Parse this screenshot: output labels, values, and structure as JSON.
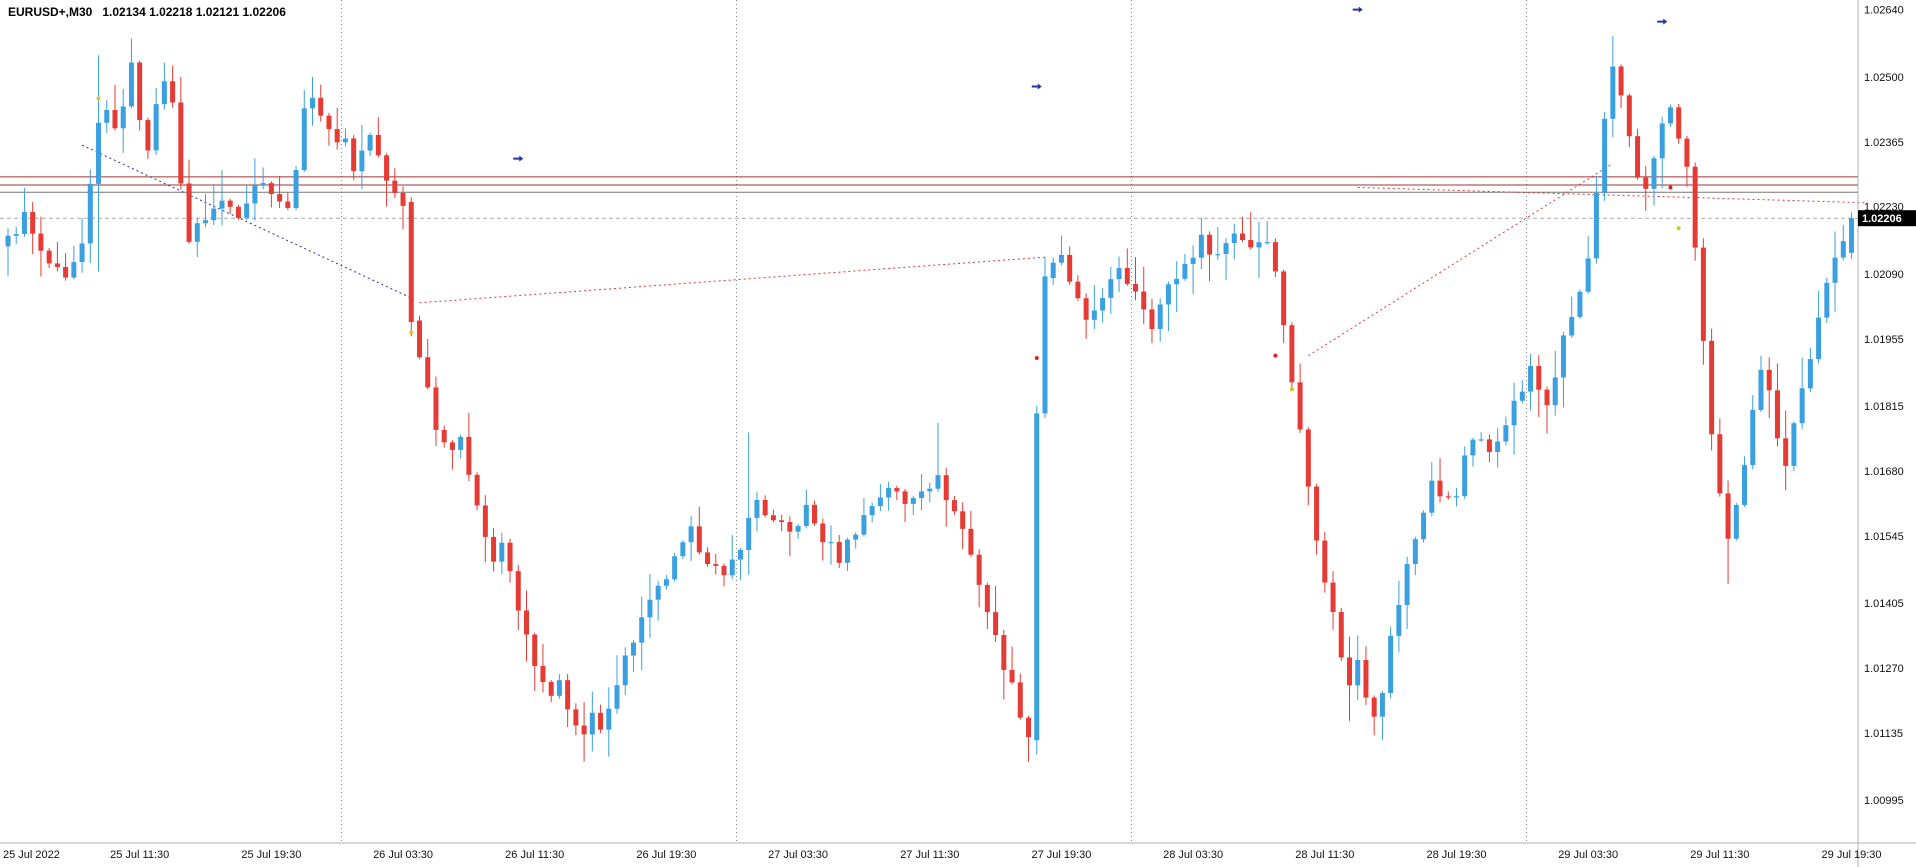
{
  "header": {
    "symbol_title": "EURUSD+,M30",
    "ohlc_text": "1.02134 1.02218 1.02121 1.02206"
  },
  "chart_data": {
    "type": "candlestick",
    "symbol": "EURUSD+",
    "timeframe": "M30",
    "current_bar": {
      "open": 1.02134,
      "high": 1.02218,
      "low": 1.02121,
      "close": 1.02206
    },
    "current_price": "1.02206",
    "price_max": 1.0266,
    "price_min": 1.00906,
    "bar_count": 225,
    "y_ticks": [
      "1.02640",
      "1.02500",
      "1.02365",
      "1.02230",
      "1.02090",
      "1.01955",
      "1.01815",
      "1.01680",
      "1.01545",
      "1.01405",
      "1.01270",
      "1.01135",
      "1.00995"
    ],
    "x_ticks": [
      {
        "label": "25 Jul 2022",
        "bar": 0
      },
      {
        "label": "25 Jul 11:30",
        "bar": 16
      },
      {
        "label": "25 Jul 19:30",
        "bar": 32
      },
      {
        "label": "26 Jul 03:30",
        "bar": 48
      },
      {
        "label": "26 Jul 11:30",
        "bar": 64
      },
      {
        "label": "26 Jul 19:30",
        "bar": 80
      },
      {
        "label": "27 Jul 03:30",
        "bar": 96
      },
      {
        "label": "27 Jul 11:30",
        "bar": 112
      },
      {
        "label": "27 Jul 19:30",
        "bar": 128
      },
      {
        "label": "28 Jul 03:30",
        "bar": 144
      },
      {
        "label": "28 Jul 11:30",
        "bar": 160
      },
      {
        "label": "28 Jul 19:30",
        "bar": 176
      },
      {
        "label": "29 Jul 03:30",
        "bar": 192
      },
      {
        "label": "29 Jul 11:30",
        "bar": 208
      },
      {
        "label": "29 Jul 19:30",
        "bar": 224
      }
    ],
    "day_separator_bars": [
      41,
      89,
      137,
      185
    ],
    "horizontal_lines": [
      {
        "price": 1.02292,
        "color": "#a03030",
        "style": "solid"
      },
      {
        "price": 1.02275,
        "color": "#a03030",
        "style": "solid"
      },
      {
        "price": 1.0226,
        "color": "#777777",
        "style": "solid"
      },
      {
        "price": 1.02206,
        "color": "#aaaaaa",
        "style": "dash"
      }
    ],
    "trendlines": [
      {
        "name": "blue-dotted-trendline",
        "color": "#2b2bb0",
        "from": {
          "bar": 9,
          "price": 1.02358
        },
        "to": {
          "bar": 49,
          "price": 1.0204
        }
      },
      {
        "name": "red-dotted-trendline-1",
        "color": "#e63535",
        "from": {
          "bar": 50,
          "price": 1.0203
        },
        "to": {
          "bar": 126,
          "price": 1.02125
        }
      },
      {
        "name": "red-dotted-trendline-2",
        "color": "#e63535",
        "from": {
          "bar": 158,
          "price": 1.0192
        },
        "to": {
          "bar": 195,
          "price": 1.0232
        }
      },
      {
        "name": "red-dotted-trendline-3",
        "color": "#e63535",
        "from": {
          "bar": 164,
          "price": 1.0227
        },
        "to": {
          "bar": 226,
          "price": 1.02238
        }
      }
    ],
    "markers": [
      {
        "type": "blue-arrow",
        "bar": 62,
        "price": 1.0233
      },
      {
        "type": "blue-arrow",
        "bar": 125,
        "price": 1.0248
      },
      {
        "type": "blue-arrow",
        "bar": 164,
        "price": 1.0264
      },
      {
        "type": "blue-arrow",
        "bar": 201,
        "price": 1.02615
      },
      {
        "type": "red-dot",
        "bar": 125,
        "price": 1.01915
      },
      {
        "type": "red-dot",
        "bar": 154,
        "price": 1.0192
      },
      {
        "type": "red-dot",
        "bar": 202,
        "price": 1.0227
      },
      {
        "type": "yellow-dot",
        "bar": 11,
        "price": 1.02455
      },
      {
        "type": "yellow-dot",
        "bar": 49,
        "price": 1.01968
      },
      {
        "type": "yellow-dot",
        "bar": 156,
        "price": 1.0185
      },
      {
        "type": "yellow-dot",
        "bar": 203,
        "price": 1.02185
      }
    ],
    "colors": {
      "bull": "#3aa0e0",
      "bear": "#e63b35",
      "background": "#ffffff",
      "axis_text": "#111111",
      "separator": "#808080",
      "price_tag_bg": "#000000",
      "price_tag_text": "#ffffff"
    },
    "price_path": [
      [
        0,
        1.0216
      ],
      [
        2,
        1.0221
      ],
      [
        4,
        1.0213
      ],
      [
        7,
        1.0207
      ],
      [
        9,
        1.0214
      ],
      [
        11,
        1.024
      ],
      [
        12,
        1.0244
      ],
      [
        13,
        1.0238
      ],
      [
        15,
        1.0252
      ],
      [
        16,
        1.0242
      ],
      [
        17,
        1.0236
      ],
      [
        19,
        1.025
      ],
      [
        20,
        1.0244
      ],
      [
        21,
        1.0229
      ],
      [
        22,
        1.0216
      ],
      [
        24,
        1.0221
      ],
      [
        26,
        1.0224
      ],
      [
        28,
        1.0222
      ],
      [
        30,
        1.0228
      ],
      [
        32,
        1.0227
      ],
      [
        34,
        1.0222
      ],
      [
        36,
        1.0242
      ],
      [
        37,
        1.0247
      ],
      [
        39,
        1.0238
      ],
      [
        41,
        1.0237
      ],
      [
        42,
        1.0231
      ],
      [
        44,
        1.0238
      ],
      [
        46,
        1.0228
      ],
      [
        48,
        1.0224
      ],
      [
        49,
        1.0199
      ],
      [
        50,
        1.0193
      ],
      [
        52,
        1.0178
      ],
      [
        54,
        1.0171
      ],
      [
        55,
        1.0176
      ],
      [
        57,
        1.0161
      ],
      [
        59,
        1.0148
      ],
      [
        60,
        1.0153
      ],
      [
        62,
        1.014
      ],
      [
        63,
        1.0133
      ],
      [
        64,
        1.0127
      ],
      [
        66,
        1.012
      ],
      [
        67,
        1.0124
      ],
      [
        69,
        1.0115
      ],
      [
        70,
        1.0112
      ],
      [
        71,
        1.0117
      ],
      [
        72,
        1.0113
      ],
      [
        73,
        1.012
      ],
      [
        75,
        1.0129
      ],
      [
        77,
        1.0137
      ],
      [
        79,
        1.0143
      ],
      [
        81,
        1.0149
      ],
      [
        83,
        1.0155
      ],
      [
        85,
        1.015
      ],
      [
        87,
        1.0145
      ],
      [
        89,
        1.0153
      ],
      [
        91,
        1.0162
      ],
      [
        93,
        1.0157
      ],
      [
        95,
        1.0155
      ],
      [
        97,
        1.016
      ],
      [
        99,
        1.0154
      ],
      [
        101,
        1.015
      ],
      [
        103,
        1.0156
      ],
      [
        105,
        1.0161
      ],
      [
        107,
        1.0165
      ],
      [
        109,
        1.0161
      ],
      [
        111,
        1.0165
      ],
      [
        113,
        1.0166
      ],
      [
        114,
        1.0163
      ],
      [
        116,
        1.0156
      ],
      [
        118,
        1.0145
      ],
      [
        120,
        1.0133
      ],
      [
        122,
        1.0123
      ],
      [
        124,
        1.0113
      ],
      [
        125,
        1.018
      ],
      [
        126,
        1.02085
      ],
      [
        128,
        1.0212
      ],
      [
        130,
        1.0203
      ],
      [
        131,
        1.0198
      ],
      [
        133,
        1.0205
      ],
      [
        135,
        1.0209
      ],
      [
        137,
        1.0206
      ],
      [
        139,
        1.0199
      ],
      [
        141,
        1.0206
      ],
      [
        143,
        1.0211
      ],
      [
        145,
        1.0216
      ],
      [
        147,
        1.0213
      ],
      [
        149,
        1.0218
      ],
      [
        151,
        1.0215
      ],
      [
        153,
        1.0217
      ],
      [
        154,
        1.0209
      ],
      [
        155,
        1.0199
      ],
      [
        156,
        1.0187
      ],
      [
        157,
        1.0176
      ],
      [
        158,
        1.0165
      ],
      [
        159,
        1.0155
      ],
      [
        160,
        1.0146
      ],
      [
        161,
        1.0138
      ],
      [
        162,
        1.013
      ],
      [
        163,
        1.0123
      ],
      [
        164,
        1.0129
      ],
      [
        165,
        1.0122
      ],
      [
        166,
        1.0118
      ],
      [
        167,
        1.0123
      ],
      [
        168,
        1.0133
      ],
      [
        170,
        1.0148
      ],
      [
        172,
        1.016
      ],
      [
        173,
        1.0166
      ],
      [
        174,
        1.0162
      ],
      [
        176,
        1.0164
      ],
      [
        177,
        1.017
      ],
      [
        178,
        1.0175
      ],
      [
        180,
        1.0172
      ],
      [
        182,
        1.0179
      ],
      [
        184,
        1.0185
      ],
      [
        185,
        1.0189
      ],
      [
        186,
        1.0185
      ],
      [
        187,
        1.0182
      ],
      [
        188,
        1.0188
      ],
      [
        189,
        1.0195
      ],
      [
        191,
        1.0205
      ],
      [
        192,
        1.0212
      ],
      [
        193,
        1.0225
      ],
      [
        194,
        1.024
      ],
      [
        195,
        1.0251
      ],
      [
        196,
        1.0246
      ],
      [
        197,
        1.0238
      ],
      [
        198,
        1.023
      ],
      [
        199,
        1.0226
      ],
      [
        200,
        1.0233
      ],
      [
        201,
        1.024
      ],
      [
        202,
        1.0243
      ],
      [
        203,
        1.0238
      ],
      [
        204,
        1.023
      ],
      [
        205,
        1.0215
      ],
      [
        206,
        1.0195
      ],
      [
        207,
        1.0175
      ],
      [
        208,
        1.0162
      ],
      [
        209,
        1.0153
      ],
      [
        210,
        1.016
      ],
      [
        211,
        1.017
      ],
      [
        212,
        1.0182
      ],
      [
        213,
        1.019
      ],
      [
        214,
        1.0184
      ],
      [
        215,
        1.0176
      ],
      [
        216,
        1.017
      ],
      [
        217,
        1.0178
      ],
      [
        218,
        1.0185
      ],
      [
        219,
        1.0192
      ],
      [
        220,
        1.0199
      ],
      [
        221,
        1.0206
      ],
      [
        222,
        1.0212
      ],
      [
        223,
        1.0217
      ],
      [
        224,
        1.02206
      ]
    ],
    "bar_overrides": {
      "11": {
        "h": 1.02545,
        "l": 1.02095
      },
      "15": {
        "h": 1.0258
      },
      "19": {
        "h": 1.0253
      },
      "37": {
        "h": 1.025
      },
      "49": {
        "o": 1.0224,
        "h": 1.0225,
        "c": 1.0199,
        "l": 1.0196
      },
      "70": {
        "l": 1.01075
      },
      "90": {
        "h": 1.0176
      },
      "113": {
        "h": 1.0178
      },
      "124": {
        "l": 1.01075
      },
      "125": {
        "o": 1.0112,
        "h": 1.01815,
        "l": 1.0109,
        "c": 1.018
      },
      "126": {
        "o": 1.018,
        "h": 1.02125,
        "l": 1.0179,
        "c": 1.02085
      },
      "131": {
        "l": 1.01955
      },
      "163": {
        "l": 1.0116
      },
      "166": {
        "l": 1.0113
      },
      "195": {
        "h": 1.02585
      },
      "209": {
        "l": 1.01445
      },
      "224": {
        "o": 1.02134,
        "h": 1.02218,
        "l": 1.02121,
        "c": 1.02206
      }
    }
  }
}
